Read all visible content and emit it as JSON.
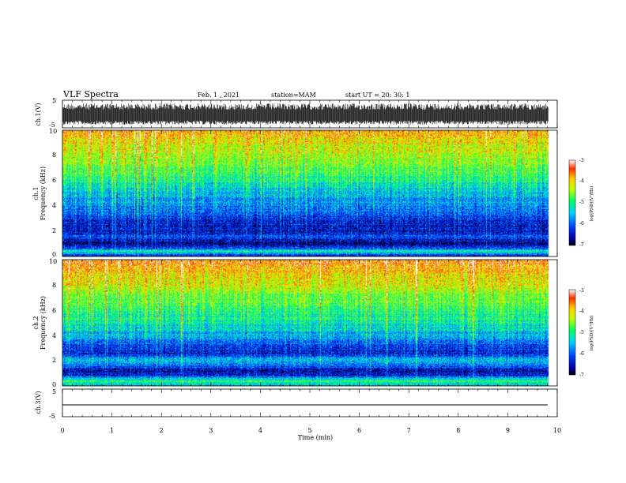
{
  "header": {
    "title": "VLF Spectra",
    "date": "Feb. 1 , 2021",
    "station": "station=MAM",
    "start": "start UT = 20: 30: 1"
  },
  "chart_data": [
    {
      "type": "line",
      "panel": "ch1-waveform",
      "ylabel": "ch.1(V)",
      "ylim": [
        -5,
        5
      ],
      "yticks": [
        "5",
        "-5"
      ],
      "xlim": [
        0,
        10
      ],
      "description_values": "dense oscillating waveform spanning roughly -5 to 5 V from 0 to ~9.8 min"
    },
    {
      "type": "heatmap",
      "panel": "ch1-spectrogram",
      "ylabel": "ch.1\nFrequency (kHz)",
      "ylim": [
        0,
        10
      ],
      "yticks": [
        "0",
        "2",
        "4",
        "6",
        "8",
        "10"
      ],
      "xlim": [
        0,
        10
      ],
      "data_end_min": 9.82,
      "colorbar": {
        "label": "log(PSD)(V²/Hz)",
        "range": [
          -7,
          -3
        ],
        "ticks": [
          "-3",
          "-4",
          "-5",
          "-6",
          "-7"
        ]
      },
      "mean_level_by_freq_khz": [
        [
          0.0,
          -6.3
        ],
        [
          0.4,
          -5.1
        ],
        [
          0.6,
          -6.0
        ],
        [
          1.0,
          -6.6
        ],
        [
          1.6,
          -6.1
        ],
        [
          2.0,
          -6.5
        ],
        [
          3.0,
          -6.2
        ],
        [
          4.0,
          -5.8
        ],
        [
          5.0,
          -5.5
        ],
        [
          6.0,
          -5.0
        ],
        [
          7.0,
          -4.7
        ],
        [
          8.0,
          -4.4
        ],
        [
          9.0,
          -4.1
        ],
        [
          10.0,
          -3.6
        ]
      ]
    },
    {
      "type": "heatmap",
      "panel": "ch2-spectrogram",
      "ylabel": "ch.2\nFrequency (kHz)",
      "ylim": [
        0,
        10
      ],
      "yticks": [
        "0",
        "2",
        "4",
        "6",
        "8",
        "10"
      ],
      "xlim": [
        0,
        10
      ],
      "data_end_min": 9.82,
      "colorbar": {
        "label": "log(PSD)(V²/Hz)",
        "range": [
          -7,
          -3
        ],
        "ticks": [
          "-3",
          "-4",
          "-5",
          "-6",
          "-7"
        ]
      },
      "mean_level_by_freq_khz": [
        [
          0.0,
          -5.4
        ],
        [
          0.4,
          -5.0
        ],
        [
          0.8,
          -6.2
        ],
        [
          1.2,
          -6.5
        ],
        [
          2.0,
          -5.4
        ],
        [
          2.6,
          -6.4
        ],
        [
          3.0,
          -6.2
        ],
        [
          4.0,
          -5.6
        ],
        [
          5.0,
          -5.2
        ],
        [
          6.0,
          -4.9
        ],
        [
          7.0,
          -4.6
        ],
        [
          8.0,
          -4.2
        ],
        [
          9.0,
          -3.9
        ],
        [
          10.0,
          -3.5
        ]
      ]
    },
    {
      "type": "line",
      "panel": "ch3-waveform",
      "ylabel": "ch.3(V)",
      "ylim": [
        -5,
        5
      ],
      "yticks": [
        "5",
        "-5"
      ],
      "xlim": [
        0,
        10
      ],
      "x": [
        0,
        9.82
      ],
      "y": [
        -1,
        -1
      ]
    }
  ],
  "xaxis": {
    "label": "Time (min)",
    "ticks": [
      "0",
      "1",
      "2",
      "3",
      "4",
      "5",
      "6",
      "7",
      "8",
      "9",
      "10"
    ]
  }
}
